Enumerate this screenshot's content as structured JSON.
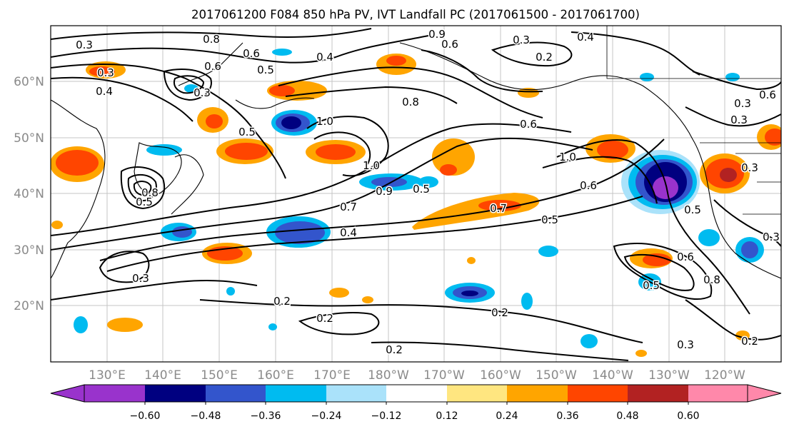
{
  "title": "2017061200 F084 850 hPa PV, IVT Landfall PC (2017061500 - 2017061700)",
  "map": {
    "lon_labels": [
      "130°E",
      "140°E",
      "150°E",
      "160°E",
      "170°E",
      "180°W",
      "170°W",
      "160°W",
      "150°W",
      "140°W",
      "130°W",
      "120°W"
    ],
    "lat_labels": [
      "60°N",
      "50°N",
      "40°N",
      "30°N",
      "20°N"
    ]
  },
  "contour_labels": [
    "0.3",
    "0.8",
    "0.6",
    "0.5",
    "0.4",
    "1.0",
    "0.9",
    "0.6",
    "0.4",
    "0.3",
    "0.2",
    "0.3",
    "0.4",
    "0.6",
    "0.3",
    "0.5",
    "0.8",
    "0.6",
    "1.0",
    "0.6",
    "0.5",
    "0.3",
    "0.6",
    "0.3",
    "1.0",
    "0.9",
    "0.5",
    "0.8",
    "0.7",
    "0.7",
    "0.5",
    "0.4",
    "0.3",
    "0.2",
    "0.2",
    "0.2",
    "0.2",
    "0.6",
    "0.8",
    "0.5",
    "0.3",
    "0.2",
    "0.3",
    "0.3",
    "0.5"
  ],
  "colorbar": {
    "ticks": [
      "−0.60",
      "−0.48",
      "−0.36",
      "−0.24",
      "−0.12",
      "0.12",
      "0.24",
      "0.36",
      "0.48",
      "0.60"
    ],
    "colors": [
      "#9933cc",
      "#000080",
      "#3355cc",
      "#00bbf0",
      "#aae2fa",
      "#ffffff",
      "#ffe680",
      "#ffa500",
      "#ff4500",
      "#b22222",
      "#ff88aa"
    ]
  },
  "shading_colors": {
    "neg_strong": "#000080",
    "neg_mid": "#3355cc",
    "neg_light": "#00bbf0",
    "neg_weak": "#aae2fa",
    "neg_extreme": "#9933cc",
    "pos_weak": "#ffe680",
    "pos_light": "#ffa500",
    "pos_mid": "#ff4500",
    "pos_strong": "#b22222"
  }
}
